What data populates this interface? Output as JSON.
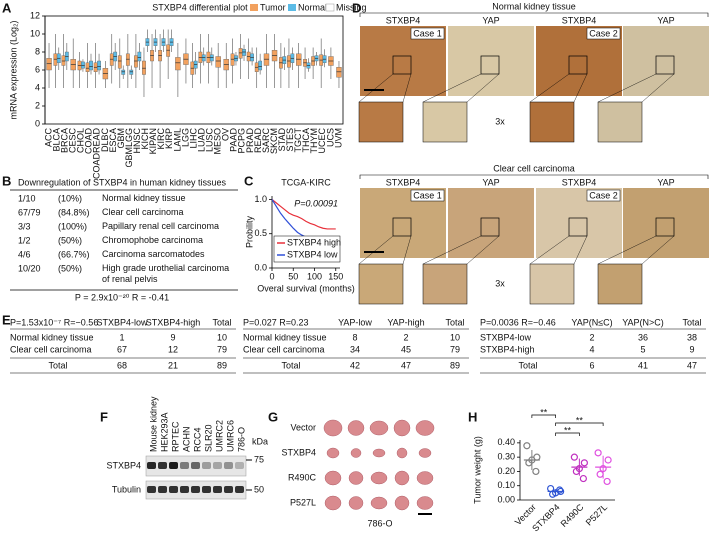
{
  "panel_labels": [
    "A",
    "B",
    "C",
    "D",
    "E",
    "F",
    "G",
    "H"
  ],
  "chart_data": [
    {
      "type": "box",
      "title": "STXBP4 differential plot",
      "y_label": "mRNA expression (Log₂)",
      "categories": [
        "ACC",
        "BLCA",
        "BRCA",
        "CESC",
        "CHOL",
        "COAD",
        "COADREAD",
        "DLBC",
        "ESCA",
        "GBM",
        "GBMLGG",
        "HNSC",
        "KICH",
        "KIPAN",
        "KIRC",
        "KIRP",
        "LAML",
        "LGG",
        "LIHC",
        "LUAD",
        "LUSC",
        "MESO",
        "OV",
        "PAAD",
        "PCPG",
        "PRAD",
        "READ",
        "SARC",
        "SKCM",
        "STAD",
        "STES",
        "TGCT",
        "THCA",
        "THYM",
        "UCEC",
        "UCS",
        "UVM"
      ],
      "highlight_indices": [
        12,
        13,
        14,
        15
      ],
      "highlight_color": "#e8731a",
      "ylim": [
        0,
        12
      ],
      "yticks": [
        0,
        2,
        4,
        6,
        8,
        10,
        12
      ],
      "series": [
        {
          "name": "Tumor",
          "color": "#f2a15e",
          "values": [
            [
              4,
              6,
              6.7,
              7.3,
              9
            ],
            [
              4,
              6.5,
              7.2,
              7.8,
              10
            ],
            [
              4,
              6.5,
              7,
              7.6,
              10
            ],
            [
              4,
              6,
              6.6,
              7.2,
              9.5
            ],
            [
              4,
              6,
              6.5,
              7,
              8
            ],
            [
              4,
              5.8,
              6.2,
              6.8,
              9
            ],
            [
              4,
              5.8,
              6.3,
              6.8,
              9
            ],
            [
              4,
              5,
              5.6,
              6.2,
              7
            ],
            [
              4.5,
              6.5,
              7.2,
              7.8,
              10
            ],
            [
              4,
              6.2,
              7,
              7.6,
              9.5
            ],
            [
              4,
              6.5,
              7.2,
              7.8,
              10
            ],
            [
              4,
              6.3,
              7,
              7.6,
              10
            ],
            [
              3,
              5.5,
              6.2,
              7,
              8.5
            ],
            [
              4,
              7,
              7.6,
              8.2,
              10
            ],
            [
              4,
              7,
              7.6,
              8.2,
              10
            ],
            [
              5,
              7.5,
              8.2,
              8.8,
              10.5
            ],
            [
              3,
              6,
              6.8,
              7.4,
              9
            ],
            [
              4.5,
              6.6,
              7.2,
              7.8,
              9.5
            ],
            [
              4,
              5.5,
              6.2,
              6.9,
              9
            ],
            [
              4.5,
              6.8,
              7.4,
              8,
              10
            ],
            [
              4.5,
              6.8,
              7.4,
              8,
              10
            ],
            [
              4,
              6.3,
              7,
              7.5,
              9
            ],
            [
              4,
              6,
              6.6,
              7.2,
              9
            ],
            [
              4.5,
              6.5,
              7.2,
              7.8,
              9.5
            ],
            [
              5,
              7.3,
              7.9,
              8.4,
              10
            ],
            [
              5,
              7,
              7.5,
              8,
              9.5
            ],
            [
              4,
              5.8,
              6.3,
              6.8,
              8.5
            ],
            [
              4,
              6.5,
              7.2,
              7.8,
              10
            ],
            [
              4,
              7,
              7.6,
              8.2,
              10
            ],
            [
              4,
              6.2,
              6.8,
              7.4,
              9
            ],
            [
              4,
              6.3,
              7,
              7.6,
              9.5
            ],
            [
              4,
              6.5,
              7.2,
              7.8,
              9
            ],
            [
              5,
              6.4,
              6.8,
              7.2,
              8.5
            ],
            [
              5,
              6.5,
              7,
              7.5,
              8.5
            ],
            [
              4,
              6.5,
              7.1,
              7.7,
              9.5
            ],
            [
              5,
              6.5,
              7,
              7.5,
              8.5
            ],
            [
              4,
              5.2,
              5.8,
              6.3,
              7
            ]
          ]
        },
        {
          "name": "Normal",
          "color": "#5bbbe6",
          "values": [
            null,
            [
              6,
              6.8,
              7.3,
              7.8,
              8.5
            ],
            [
              6,
              7,
              7.5,
              8,
              9
            ],
            null,
            [
              5.8,
              6.2,
              6.5,
              6.9,
              7.2
            ],
            [
              5.5,
              6,
              6.4,
              7,
              7.8
            ],
            [
              5.5,
              6,
              6.4,
              7,
              7.8
            ],
            null,
            [
              6,
              7,
              7.5,
              8,
              9
            ],
            [
              5,
              5.5,
              5.8,
              6,
              6.5
            ],
            [
              5,
              5.5,
              5.8,
              6,
              6.5
            ],
            [
              6,
              7,
              7.4,
              8,
              9
            ],
            [
              8,
              8.7,
              9.1,
              9.5,
              10.5
            ],
            [
              8,
              8.7,
              9.1,
              9.5,
              10.5
            ],
            [
              8,
              8.7,
              9.1,
              9.5,
              10.5
            ],
            [
              8,
              8.7,
              9.1,
              9.5,
              10.5
            ],
            null,
            null,
            [
              5.5,
              6.2,
              6.6,
              7,
              8
            ],
            [
              6.5,
              7,
              7.4,
              7.7,
              8.5
            ],
            [
              6.5,
              7,
              7.4,
              7.7,
              8.5
            ],
            null,
            null,
            [
              6.5,
              7,
              7.3,
              7.6,
              8
            ],
            [
              7,
              7.6,
              8,
              8.3,
              8.8
            ],
            [
              6.5,
              7,
              7.4,
              7.8,
              8.5
            ],
            [
              5.5,
              6,
              6.4,
              7,
              7.8
            ],
            null,
            null,
            [
              6,
              6.7,
              7.1,
              7.5,
              8.5
            ],
            [
              6,
              6.8,
              7.3,
              7.8,
              8.5
            ],
            null,
            [
              5.8,
              6.2,
              6.5,
              6.8,
              7.3
            ],
            [
              6.5,
              7,
              7.3,
              7.6,
              8
            ],
            [
              6.3,
              6.8,
              7.2,
              7.6,
              8.3
            ],
            null,
            null
          ]
        }
      ],
      "missing_label": "Missing",
      "missing_color": "#ffffff"
    },
    {
      "type": "line",
      "title": "TCGA-KIRC",
      "x_label": "Overal survival (months)",
      "y_label": "Probility",
      "annotation": "P=0.00091",
      "xlim": [
        0,
        160
      ],
      "xticks": [
        0,
        50,
        100,
        150
      ],
      "ylim": [
        0,
        1.05
      ],
      "yticks": [
        {
          "value": 0,
          "label": "0.0"
        },
        {
          "value": 0.5,
          "label": "0.5"
        },
        {
          "value": 1,
          "label": "1.0"
        }
      ],
      "series": [
        {
          "name": "STXBP4 high",
          "color": "#e8303a",
          "x": [
            0,
            10,
            20,
            30,
            40,
            50,
            60,
            70,
            80,
            90,
            100,
            110,
            120,
            130,
            150
          ],
          "values": [
            1,
            0.95,
            0.9,
            0.85,
            0.8,
            0.77,
            0.75,
            0.72,
            0.68,
            0.65,
            0.63,
            0.6,
            0.58,
            0.57,
            0.57
          ]
        },
        {
          "name": "STXBP4 low",
          "color": "#3050d8",
          "x": [
            0,
            10,
            20,
            30,
            40,
            50,
            60,
            70,
            80,
            90,
            100,
            110,
            120,
            125
          ],
          "values": [
            1,
            0.9,
            0.8,
            0.72,
            0.65,
            0.58,
            0.52,
            0.48,
            0.45,
            0.42,
            0.4,
            0.38,
            0.35,
            0.28
          ]
        }
      ]
    },
    {
      "type": "scatter",
      "y_label": "Tumor weight (g)",
      "ylim": [
        0,
        0.42
      ],
      "yticks": [
        {
          "value": 0,
          "label": "0.00"
        },
        {
          "value": 0.1,
          "label": "0.10"
        },
        {
          "value": 0.2,
          "label": "0.20"
        },
        {
          "value": 0.3,
          "label": "0.30"
        },
        {
          "value": 0.4,
          "label": "0.40"
        }
      ],
      "series": [
        {
          "name": "Vector",
          "color": "#808080",
          "values": [
            0.38,
            0.3,
            0.28,
            0.26,
            0.2
          ],
          "mean": 0.28,
          "sd": 0.07
        },
        {
          "name": "STXBP4",
          "color": "#2f55d4",
          "values": [
            0.08,
            0.06,
            0.05,
            0.04,
            0.07
          ],
          "mean": 0.06,
          "sd": 0.015
        },
        {
          "name": "R490C",
          "color": "#c030c0",
          "values": [
            0.3,
            0.26,
            0.22,
            0.2,
            0.15
          ],
          "mean": 0.23,
          "sd": 0.06
        },
        {
          "name": "P527L",
          "color": "#e050e0",
          "values": [
            0.33,
            0.28,
            0.22,
            0.18,
            0.13
          ],
          "mean": 0.23,
          "sd": 0.08
        }
      ],
      "annotations": [
        "**",
        "**",
        "**"
      ]
    }
  ],
  "panel_b": {
    "title": "Downregulation of STXBP4 in human kidney tissues",
    "rows": [
      [
        "1/10",
        "(10%)",
        "Normal kidney tissue"
      ],
      [
        "67/79",
        "(84.8%)",
        "Clear cell carcinoma"
      ],
      [
        "3/3",
        "(100%)",
        "Papillary renal cell carcinoma"
      ],
      [
        "1/2",
        "(50%)",
        "Chromophobe carcinoma"
      ],
      [
        "4/6",
        "(66.7%)",
        "Carcinoma sarcomatodes"
      ],
      [
        "10/20",
        "(50%)",
        "High grade urothelial carcinoma of renal pelvis"
      ]
    ],
    "footer": "P = 2.9x10⁻²⁰   R = -0.41"
  },
  "panel_d": {
    "sections": [
      {
        "title": "Normal kidney tissue",
        "columns": [
          "STXBP4",
          "YAP",
          "STXBP4",
          "YAP"
        ],
        "cases": [
          "Case 1",
          "Case 2"
        ],
        "zoom": "3x"
      },
      {
        "title": "Clear cell carcinoma",
        "columns": [
          "STXBP4",
          "YAP",
          "STXBP4",
          "YAP"
        ],
        "cases": [
          "Case 1",
          "Case 2"
        ],
        "zoom": "3x"
      }
    ]
  },
  "panel_e": {
    "tables": [
      {
        "header": [
          "P=1.53x10⁻⁷ R=−0.56",
          "STXBP4-low",
          "STXBP4-high",
          "Total"
        ],
        "rows": [
          [
            "Normal kidney tissue",
            1,
            9,
            10
          ],
          [
            "Clear cell carcinoma",
            67,
            12,
            79
          ],
          [
            "Total",
            68,
            21,
            89
          ]
        ]
      },
      {
        "header": [
          "P=0.027 R=0.23",
          "YAP-low",
          "YAP-high",
          "Total"
        ],
        "rows": [
          [
            "Normal kidney tissue",
            8,
            2,
            10
          ],
          [
            "Clear cell carcinoma",
            34,
            45,
            79
          ],
          [
            "Total",
            42,
            47,
            89
          ]
        ]
      },
      {
        "header": [
          "P=0.0036 R=−0.46",
          "YAP(N≤C)",
          "YAP(N>C)",
          "Total"
        ],
        "rows": [
          [
            "STXBP4-low",
            2,
            36,
            38
          ],
          [
            "STXBP4-high",
            4,
            5,
            9
          ],
          [
            "Total",
            6,
            41,
            47
          ]
        ]
      }
    ]
  },
  "panel_f": {
    "lanes": [
      "Mouse kidney",
      "HEK293A",
      "RPTEC",
      "ACHN",
      "RCC4",
      "SLR20",
      "UMRC2",
      "UMRC6",
      "786-O"
    ],
    "rows": [
      "STXBP4",
      "Tubulin"
    ],
    "unit": "kDa",
    "markers": [
      75,
      50
    ]
  },
  "panel_g": {
    "rows": [
      "Vector",
      "STXBP4",
      "R490C",
      "P527L"
    ],
    "cell_line": "786-O"
  }
}
